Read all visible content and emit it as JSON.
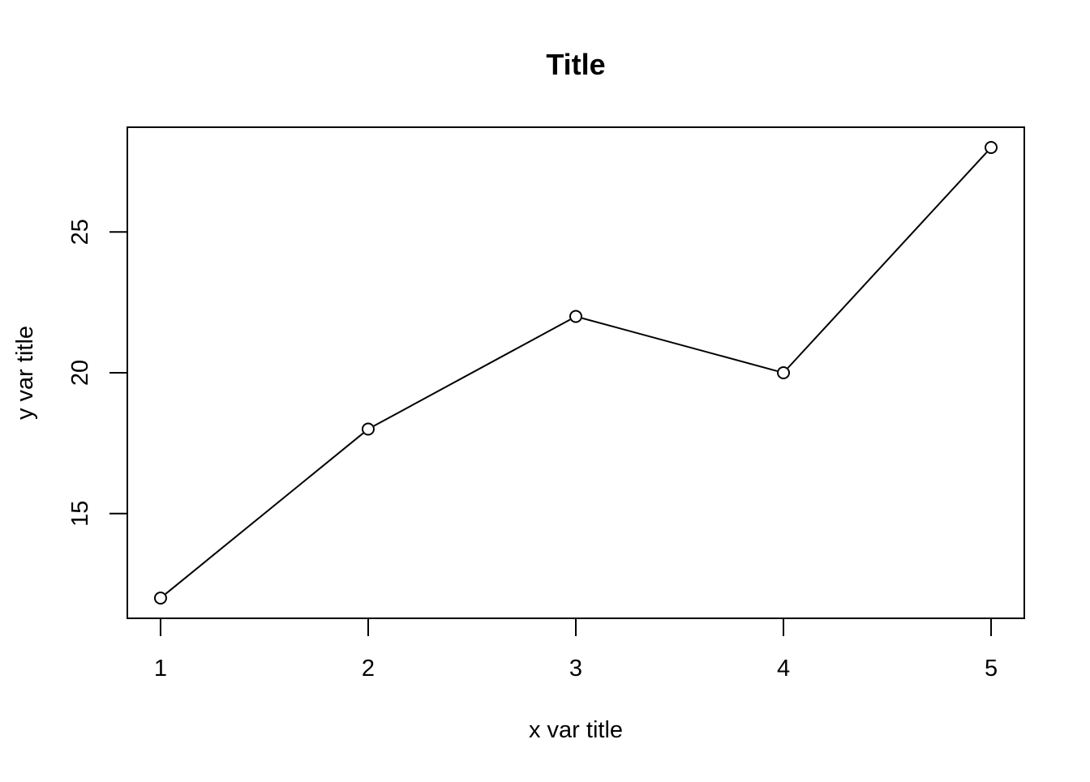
{
  "chart_data": {
    "type": "line",
    "title": "Title",
    "xlabel": "x var title",
    "ylabel": "y var title",
    "x": [
      1,
      2,
      3,
      4,
      5
    ],
    "series": [
      {
        "values": [
          12,
          18,
          22,
          20,
          28
        ]
      }
    ],
    "xlim": [
      0.84,
      5.16
    ],
    "ylim": [
      11.28,
      28.72
    ],
    "xticks": [
      1,
      2,
      3,
      4,
      5
    ],
    "yticks": [
      15,
      20,
      25
    ],
    "xtick_labels": [
      "1",
      "2",
      "3",
      "4",
      "5"
    ],
    "ytick_labels": [
      "15",
      "20",
      "25"
    ],
    "marker": "open-circle",
    "grid": false,
    "legend": "none",
    "line_color": "#000000"
  }
}
